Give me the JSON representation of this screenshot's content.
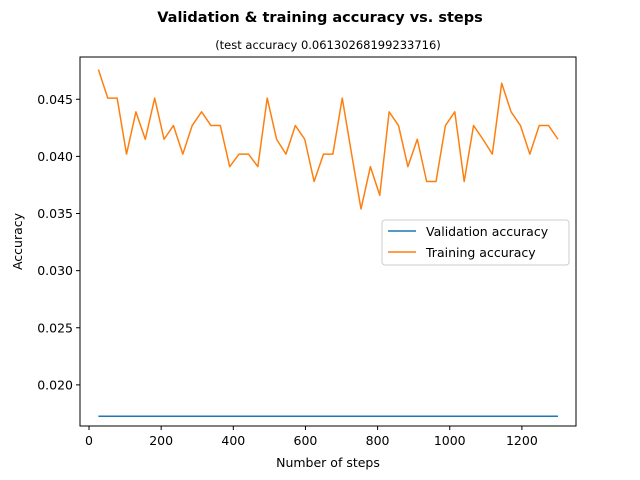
{
  "chart_data": {
    "type": "line",
    "title": "Validation & training accuracy vs. steps",
    "subtitle": "(test accuracy 0.06130268199233716)",
    "xlabel": "Number of steps",
    "ylabel": "Accuracy",
    "xlim": [
      -25,
      1350
    ],
    "ylim": [
      0.0164,
      0.0487
    ],
    "xticks": [
      0,
      200,
      400,
      600,
      800,
      1000,
      1200
    ],
    "xtick_labels": [
      "0",
      "200",
      "400",
      "600",
      "800",
      "1000",
      "1200"
    ],
    "yticks": [
      0.02,
      0.025,
      0.03,
      0.035,
      0.04,
      0.045
    ],
    "ytick_labels": [
      "0.020",
      "0.025",
      "0.030",
      "0.035",
      "0.040",
      "0.045"
    ],
    "grid": false,
    "legend_position": "center-right",
    "series": [
      {
        "name": "Validation accuracy",
        "color": "#1f77b4",
        "x": [
          26,
          1300
        ],
        "y": [
          0.01725,
          0.01725
        ]
      },
      {
        "name": "Training accuracy",
        "color": "#ff7f0e",
        "x": [
          26,
          52,
          78,
          104,
          130,
          156,
          182,
          208,
          234,
          260,
          286,
          312,
          338,
          364,
          390,
          416,
          442,
          468,
          494,
          520,
          546,
          572,
          598,
          624,
          650,
          676,
          702,
          728,
          754,
          780,
          806,
          832,
          858,
          884,
          910,
          936,
          962,
          988,
          1014,
          1040,
          1066,
          1092,
          1118,
          1144,
          1170,
          1196,
          1222,
          1248,
          1274,
          1300
        ],
        "y": [
          0.0476,
          0.0451,
          0.0451,
          0.0402,
          0.0439,
          0.0415,
          0.0451,
          0.0415,
          0.0427,
          0.0402,
          0.0427,
          0.0439,
          0.0427,
          0.0427,
          0.0391,
          0.0402,
          0.0402,
          0.0391,
          0.0451,
          0.0415,
          0.0402,
          0.0427,
          0.0415,
          0.0378,
          0.0402,
          0.0402,
          0.0451,
          0.0402,
          0.0354,
          0.0391,
          0.0366,
          0.0439,
          0.0427,
          0.0391,
          0.0415,
          0.0378,
          0.0378,
          0.0427,
          0.0439,
          0.0378,
          0.0427,
          0.0415,
          0.0402,
          0.0464,
          0.0439,
          0.0427,
          0.0402,
          0.0427,
          0.0427,
          0.0415
        ]
      }
    ]
  }
}
